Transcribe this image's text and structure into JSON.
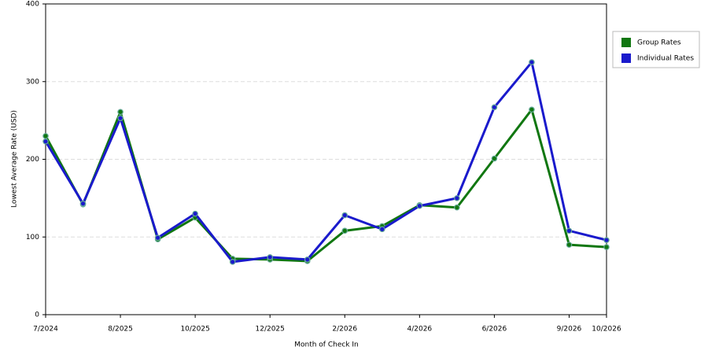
{
  "chart_data": {
    "type": "line",
    "x_label": "Month of Check In",
    "y_label": "Lowest Average Rate (USD)",
    "categories": [
      "7/2024",
      null,
      "8/2025",
      null,
      "10/2025",
      null,
      "12/2025",
      null,
      "2/2026",
      null,
      "4/2026",
      null,
      "6/2026",
      null,
      "9/2026",
      "10/2026"
    ],
    "series": [
      {
        "name": "Group Rates",
        "color": "#117711",
        "values": [
          230,
          142,
          261,
          97,
          125,
          72,
          71,
          69,
          108,
          114,
          141,
          138,
          201,
          264,
          90,
          87
        ]
      },
      {
        "name": "Individual Rates",
        "color": "#1a1acc",
        "values": [
          223,
          143,
          253,
          99,
          130,
          68,
          74,
          71,
          128,
          110,
          140,
          150,
          267,
          325,
          108,
          96
        ]
      }
    ],
    "ylim": [
      0,
      400
    ],
    "yticks": [
      0,
      100,
      200,
      300,
      400
    ],
    "grid": true
  }
}
